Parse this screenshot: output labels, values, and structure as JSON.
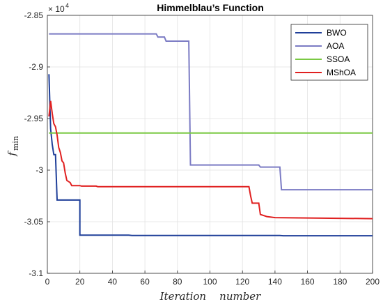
{
  "chart_data": {
    "type": "line",
    "title": "Himmelblau’s Function",
    "xlabel": "Iteration    number",
    "ylabel": "f",
    "ylabel_sub": "min",
    "y_multiplier_base": "× 10",
    "y_multiplier_exp": "4",
    "xlim": [
      0,
      200
    ],
    "ylim": [
      -3.1,
      -2.85
    ],
    "xticks": [
      "0",
      "20",
      "40",
      "60",
      "80",
      "100",
      "120",
      "140",
      "160",
      "180",
      "200"
    ],
    "yticks": [
      "-2.85",
      "-2.9",
      "-2.95",
      "-3",
      "-3.05",
      "-3.1"
    ],
    "xtick_values": [
      0,
      20,
      40,
      60,
      80,
      100,
      120,
      140,
      160,
      180,
      200
    ],
    "ytick_values": [
      -2.85,
      -2.9,
      -2.95,
      -3.0,
      -3.05,
      -3.1
    ],
    "grid": true,
    "legend_position": "top-right",
    "series": [
      {
        "name": "BWO",
        "color": "#1f3f99",
        "points": [
          [
            1,
            -2.907
          ],
          [
            2,
            -2.96
          ],
          [
            3,
            -2.975
          ],
          [
            4,
            -2.985
          ],
          [
            5,
            -2.985
          ],
          [
            6,
            -3.029
          ],
          [
            20,
            -3.029
          ],
          [
            20,
            -3.063
          ],
          [
            50,
            -3.063
          ],
          [
            52,
            -3.0633
          ],
          [
            143,
            -3.0633
          ],
          [
            145,
            -3.0636
          ],
          [
            200,
            -3.0636
          ]
        ]
      },
      {
        "name": "AOA",
        "color": "#7b7bc4",
        "points": [
          [
            1,
            -2.868
          ],
          [
            67,
            -2.868
          ],
          [
            68,
            -2.871
          ],
          [
            72,
            -2.871
          ],
          [
            73,
            -2.875
          ],
          [
            87,
            -2.875
          ],
          [
            88,
            -2.995
          ],
          [
            130,
            -2.995
          ],
          [
            131,
            -2.997
          ],
          [
            143,
            -2.997
          ],
          [
            144,
            -3.019
          ],
          [
            200,
            -3.019
          ]
        ]
      },
      {
        "name": "SSOA",
        "color": "#7ac943",
        "points": [
          [
            1,
            -2.964
          ],
          [
            200,
            -2.964
          ]
        ]
      },
      {
        "name": "MShOA",
        "color": "#e02020",
        "points": [
          [
            1,
            -2.948
          ],
          [
            2,
            -2.933
          ],
          [
            3,
            -2.945
          ],
          [
            4,
            -2.955
          ],
          [
            5,
            -2.958
          ],
          [
            6,
            -2.966
          ],
          [
            7,
            -2.978
          ],
          [
            8,
            -2.983
          ],
          [
            9,
            -2.991
          ],
          [
            10,
            -2.993
          ],
          [
            11,
            -3.003
          ],
          [
            12,
            -3.01
          ],
          [
            14,
            -3.012
          ],
          [
            15,
            -3.015
          ],
          [
            20,
            -3.015
          ],
          [
            21,
            -3.0155
          ],
          [
            30,
            -3.0155
          ],
          [
            31,
            -3.016
          ],
          [
            124,
            -3.016
          ],
          [
            125,
            -3.025
          ],
          [
            126,
            -3.032
          ],
          [
            130,
            -3.032
          ],
          [
            131,
            -3.043
          ],
          [
            135,
            -3.045
          ],
          [
            140,
            -3.046
          ],
          [
            200,
            -3.047
          ]
        ]
      }
    ]
  }
}
